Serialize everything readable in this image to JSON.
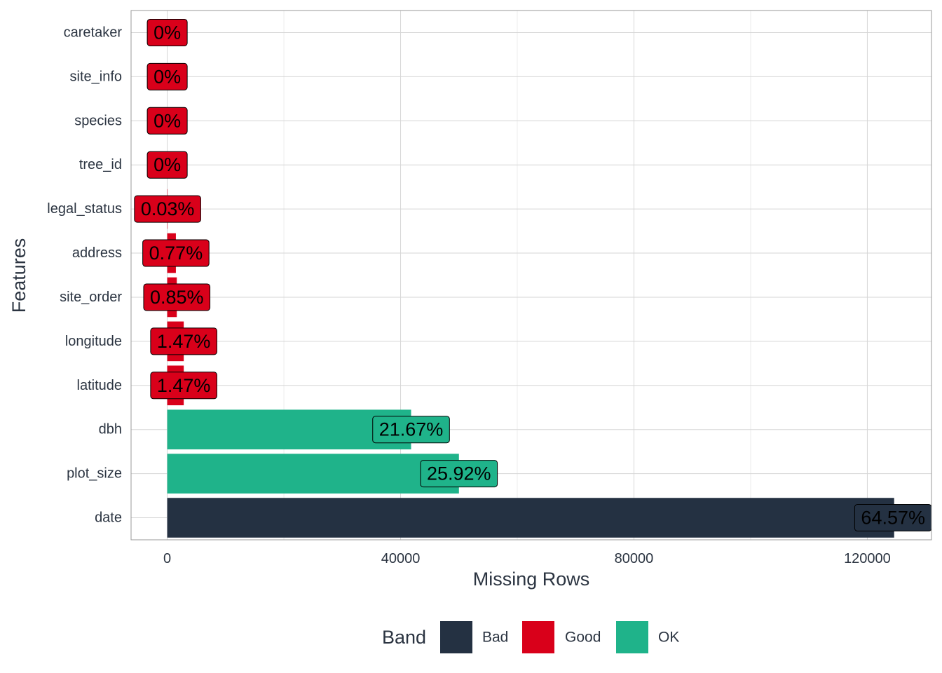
{
  "chart_data": {
    "type": "bar",
    "orientation": "horizontal",
    "xlabel": "Missing Rows",
    "ylabel": "Features",
    "xlim": [
      -6200,
      131000
    ],
    "x_ticks": [
      0,
      40000,
      80000,
      120000
    ],
    "x_tick_labels": [
      "0",
      "40000",
      "80000",
      "120000"
    ],
    "grid": true,
    "legend": {
      "title": "Band",
      "position": "bottom",
      "items": [
        {
          "name": "Bad",
          "color": "#243142"
        },
        {
          "name": "Good",
          "color": "#d9001a"
        },
        {
          "name": "OK",
          "color": "#1fb38a"
        }
      ]
    },
    "colors": {
      "Bad": "#243142",
      "Good": "#d9001a",
      "OK": "#1fb38a"
    },
    "categories": [
      "caretaker",
      "site_info",
      "species",
      "tree_id",
      "legal_status",
      "address",
      "site_order",
      "longitude",
      "latitude",
      "dbh",
      "plot_size",
      "date"
    ],
    "values": [
      0,
      0,
      0,
      0,
      60,
      1480,
      1640,
      2830,
      2830,
      41800,
      50000,
      124600
    ],
    "bands": [
      "Good",
      "Good",
      "Good",
      "Good",
      "Good",
      "Good",
      "Good",
      "Good",
      "Good",
      "OK",
      "OK",
      "Bad"
    ],
    "labels": [
      "0%",
      "0%",
      "0%",
      "0%",
      "0.03%",
      "0.77%",
      "0.85%",
      "1.47%",
      "1.47%",
      "21.67%",
      "25.92%",
      "64.57%"
    ]
  }
}
